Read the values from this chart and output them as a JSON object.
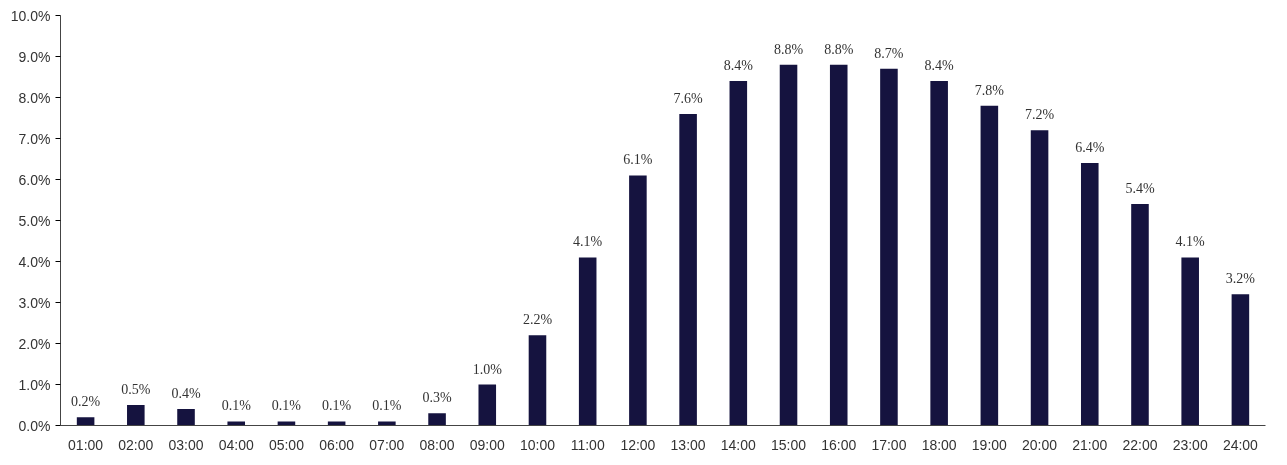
{
  "chart_data": {
    "type": "bar",
    "categories": [
      "01:00",
      "02:00",
      "03:00",
      "04:00",
      "05:00",
      "06:00",
      "07:00",
      "08:00",
      "09:00",
      "10:00",
      "11:00",
      "12:00",
      "13:00",
      "14:00",
      "15:00",
      "16:00",
      "17:00",
      "18:00",
      "19:00",
      "20:00",
      "21:00",
      "22:00",
      "23:00",
      "24:00"
    ],
    "values": [
      0.2,
      0.5,
      0.4,
      0.1,
      0.1,
      0.1,
      0.1,
      0.3,
      1.0,
      2.2,
      4.1,
      6.1,
      7.6,
      8.4,
      8.8,
      8.8,
      8.7,
      8.4,
      7.8,
      7.2,
      6.4,
      5.4,
      4.1,
      3.2
    ],
    "value_labels": [
      "0.2%",
      "0.5%",
      "0.4%",
      "0.1%",
      "0.1%",
      "0.1%",
      "0.1%",
      "0.3%",
      "1.0%",
      "2.2%",
      "4.1%",
      "6.1%",
      "7.6%",
      "8.4%",
      "8.8%",
      "8.8%",
      "8.7%",
      "8.4%",
      "7.8%",
      "7.2%",
      "6.4%",
      "5.4%",
      "4.1%",
      "3.2%"
    ],
    "color": "#15133f",
    "ylim": [
      0,
      10
    ],
    "yticks": [
      {
        "value": 0,
        "label": "0.0%"
      },
      {
        "value": 1,
        "label": "1.0%"
      },
      {
        "value": 2,
        "label": "2.0%"
      },
      {
        "value": 3,
        "label": "3.0%"
      },
      {
        "value": 4,
        "label": "4.0%"
      },
      {
        "value": 5,
        "label": "5.0%"
      },
      {
        "value": 6,
        "label": "6.0%"
      },
      {
        "value": 7,
        "label": "7.0%"
      },
      {
        "value": 8,
        "label": "8.0%"
      },
      {
        "value": 9,
        "label": "9.0%"
      },
      {
        "value": 10,
        "label": "10.0%"
      }
    ],
    "grid": false
  }
}
